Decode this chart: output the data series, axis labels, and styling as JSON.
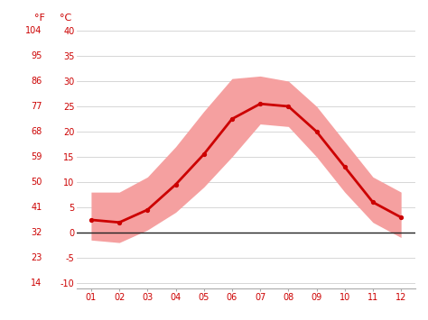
{
  "months": [
    1,
    2,
    3,
    4,
    5,
    6,
    7,
    8,
    9,
    10,
    11,
    12
  ],
  "month_labels": [
    "01",
    "02",
    "03",
    "04",
    "05",
    "06",
    "07",
    "08",
    "09",
    "10",
    "11",
    "12"
  ],
  "mean_temp_c": [
    2.5,
    2.0,
    4.5,
    9.5,
    15.5,
    22.5,
    25.5,
    25.0,
    20.0,
    13.0,
    6.0,
    3.0
  ],
  "max_temp_c": [
    8.0,
    8.0,
    11.0,
    17.0,
    24.0,
    30.5,
    31.0,
    30.0,
    25.0,
    18.0,
    11.0,
    8.0
  ],
  "min_temp_c": [
    -1.5,
    -2.0,
    0.5,
    4.0,
    9.0,
    15.0,
    21.5,
    21.0,
    15.0,
    8.0,
    2.0,
    -1.0
  ],
  "yticks_c": [
    -10,
    -5,
    0,
    5,
    10,
    15,
    20,
    25,
    30,
    35,
    40
  ],
  "yticks_f": [
    14,
    23,
    32,
    41,
    50,
    59,
    68,
    77,
    86,
    95,
    104
  ],
  "ylim_c": [
    -11,
    41
  ],
  "line_color": "#cc0000",
  "band_color": "#f5a0a0",
  "zero_line_color": "#222222",
  "bg_color": "#ffffff",
  "grid_color": "#d0d0d0",
  "tick_color": "#cc0000",
  "label_f": "°F",
  "label_c": "°C"
}
